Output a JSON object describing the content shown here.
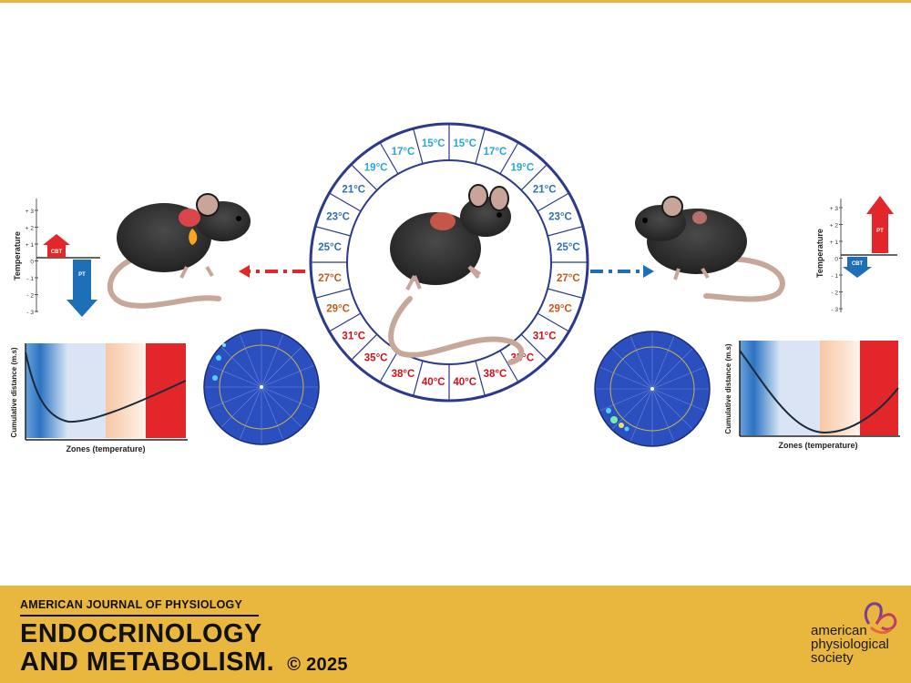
{
  "ring": {
    "labels": [
      "15°C",
      "17°C",
      "19°C",
      "21°C",
      "23°C",
      "25°C",
      "27°C",
      "29°C",
      "31°C",
      "35°C",
      "38°C",
      "40°C",
      "40°C",
      "38°C",
      "35°C",
      "31°C",
      "29°C",
      "27°C",
      "25°C",
      "23°C",
      "21°C",
      "19°C",
      "17°C",
      "15°C"
    ],
    "colors": {
      "cold": "#2aa6dc",
      "cool": "#2f6fb5",
      "warm": "#c55a1a",
      "hot": "#d1121a"
    }
  },
  "left_panel": {
    "temp_axis_label": "Temperature",
    "temp_ticks": [
      "+ 3",
      "+ 2",
      "+ 1",
      "0",
      "- 1",
      "- 2",
      "- 3"
    ],
    "cbt_label": "CBT",
    "pt_label": "PT",
    "graph_ylabel": "Cumulative distance (m.s)",
    "graph_xlabel": "Zones (temperature)"
  },
  "right_panel": {
    "temp_axis_label": "Temperature",
    "temp_ticks": [
      "+ 3",
      "+ 2",
      "+ 1",
      "0",
      "- 1",
      "- 2",
      "- 3"
    ],
    "cbt_label": "CBT",
    "pt_label": "PT",
    "graph_ylabel": "Cumulative distance (m.s)",
    "graph_xlabel": "Zones (temperature)"
  },
  "footer": {
    "series": "AMERICAN JOURNAL OF PHYSIOLOGY",
    "journal_line1": "ENDOCRINOLOGY",
    "journal_line2": "AND METABOLISM.",
    "copyright": "© 2025",
    "society_line1": "american",
    "society_line2": "physiological",
    "society_line3": "society"
  },
  "accent_colors": {
    "footer_bg": "#e9b63e",
    "red": "#e3262a",
    "blue": "#1f6fb8",
    "polar_bg": "#2b4fbf"
  }
}
